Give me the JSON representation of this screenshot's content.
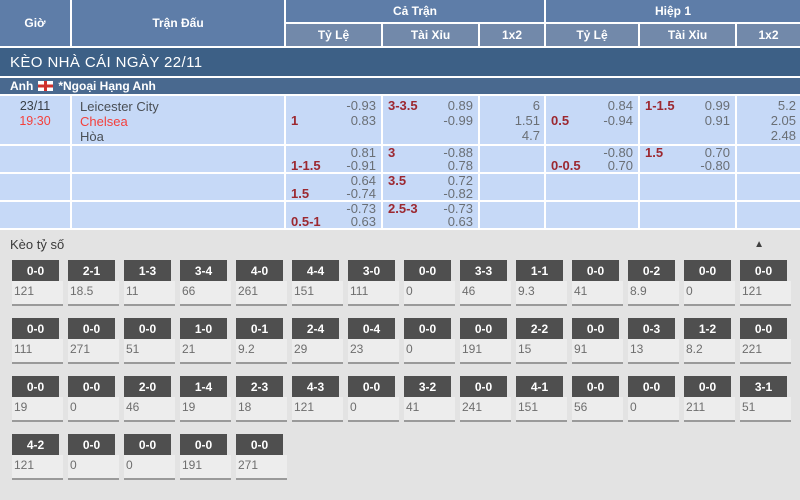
{
  "table": {
    "header": {
      "time": "Giờ",
      "match": "Trận Đấu",
      "full_time": "Cả Trận",
      "first_half": "Hiệp 1",
      "handicap": "Tỷ Lệ",
      "over_under": "Tài Xỉu",
      "one_x_two": "1x2"
    },
    "banner": "KÈO NHÀ CÁI NGÀY 22/11",
    "league": {
      "country": "Anh",
      "flag_icon": "england-flag-icon",
      "name": "*Ngoại Hạng Anh"
    },
    "match": {
      "date": "23/11",
      "time": "19:30",
      "home": "Leicester City",
      "away": "Chelsea",
      "draw": "Hòa"
    },
    "odds_rows": [
      {
        "ft_handicap": {
          "l1l": "",
          "l1r": "-0.93",
          "l2l": "1",
          "l2r": "0.83"
        },
        "ft_ou": {
          "l1l": "3-3.5",
          "l1r": "0.89",
          "l2l": "",
          "l2r": "-0.99"
        },
        "ft_1x2": [
          "6",
          "1.51",
          "4.7"
        ],
        "h1_handicap": {
          "l1l": "",
          "l1r": "0.84",
          "l2l": "0.5",
          "l2r": "-0.94"
        },
        "h1_ou": {
          "l1l": "1-1.5",
          "l1r": "0.99",
          "l2l": "",
          "l2r": "0.91"
        },
        "h1_1x2": [
          "5.2",
          "2.05",
          "2.48"
        ]
      },
      {
        "ft_handicap": {
          "l1l": "",
          "l1r": "0.81",
          "l2l": "1-1.5",
          "l2r": "-0.91"
        },
        "ft_ou": {
          "l1l": "3",
          "l1r": "-0.88",
          "l2l": "",
          "l2r": "0.78"
        },
        "ft_1x2": [],
        "h1_handicap": {
          "l1l": "",
          "l1r": "-0.80",
          "l2l": "0-0.5",
          "l2r": "0.70"
        },
        "h1_ou": {
          "l1l": "1.5",
          "l1r": "0.70",
          "l2l": "",
          "l2r": "-0.80"
        },
        "h1_1x2": []
      },
      {
        "ft_handicap": {
          "l1l": "",
          "l1r": "0.64",
          "l2l": "1.5",
          "l2r": "-0.74"
        },
        "ft_ou": {
          "l1l": "3.5",
          "l1r": "0.72",
          "l2l": "",
          "l2r": "-0.82"
        },
        "ft_1x2": [],
        "h1_handicap": null,
        "h1_ou": null,
        "h1_1x2": []
      },
      {
        "ft_handicap": {
          "l1l": "",
          "l1r": "-0.73",
          "l2l": "0.5-1",
          "l2r": "0.63"
        },
        "ft_ou": {
          "l1l": "2.5-3",
          "l1r": "-0.73",
          "l2l": "",
          "l2r": "0.63"
        },
        "ft_1x2": [],
        "h1_handicap": null,
        "h1_ou": null,
        "h1_1x2": []
      }
    ]
  },
  "correct_score": {
    "title": "Kèo tỷ số",
    "collapse_icon_glyph": "▲",
    "rows": [
      [
        {
          "score": "0-0",
          "odds": "121"
        },
        {
          "score": "2-1",
          "odds": "18.5"
        },
        {
          "score": "1-3",
          "odds": "11"
        },
        {
          "score": "3-4",
          "odds": "66"
        },
        {
          "score": "4-0",
          "odds": "261"
        },
        {
          "score": "4-4",
          "odds": "151"
        },
        {
          "score": "3-0",
          "odds": "111"
        },
        {
          "score": "0-0",
          "odds": "0"
        },
        {
          "score": "3-3",
          "odds": "46"
        },
        {
          "score": "1-1",
          "odds": "9.3"
        },
        {
          "score": "0-0",
          "odds": "41"
        },
        {
          "score": "0-2",
          "odds": "8.9"
        },
        {
          "score": "0-0",
          "odds": "0"
        },
        {
          "score": "0-0",
          "odds": "121"
        }
      ],
      [
        {
          "score": "0-0",
          "odds": "111"
        },
        {
          "score": "0-0",
          "odds": "271"
        },
        {
          "score": "0-0",
          "odds": "51"
        },
        {
          "score": "1-0",
          "odds": "21"
        },
        {
          "score": "0-1",
          "odds": "9.2"
        },
        {
          "score": "2-4",
          "odds": "29"
        },
        {
          "score": "0-4",
          "odds": "23"
        },
        {
          "score": "0-0",
          "odds": "0"
        },
        {
          "score": "0-0",
          "odds": "191"
        },
        {
          "score": "2-2",
          "odds": "15"
        },
        {
          "score": "0-0",
          "odds": "91"
        },
        {
          "score": "0-3",
          "odds": "13"
        },
        {
          "score": "1-2",
          "odds": "8.2"
        },
        {
          "score": "0-0",
          "odds": "221"
        }
      ],
      [
        {
          "score": "0-0",
          "odds": "19"
        },
        {
          "score": "0-0",
          "odds": "0"
        },
        {
          "score": "2-0",
          "odds": "46"
        },
        {
          "score": "1-4",
          "odds": "19"
        },
        {
          "score": "2-3",
          "odds": "18"
        },
        {
          "score": "4-3",
          "odds": "121"
        },
        {
          "score": "0-0",
          "odds": "0"
        },
        {
          "score": "3-2",
          "odds": "41"
        },
        {
          "score": "0-0",
          "odds": "241"
        },
        {
          "score": "4-1",
          "odds": "151"
        },
        {
          "score": "0-0",
          "odds": "56"
        },
        {
          "score": "0-0",
          "odds": "0"
        },
        {
          "score": "0-0",
          "odds": "211"
        },
        {
          "score": "3-1",
          "odds": "51"
        }
      ],
      [
        {
          "score": "4-2",
          "odds": "121"
        },
        {
          "score": "0-0",
          "odds": "0"
        },
        {
          "score": "0-0",
          "odds": "0"
        },
        {
          "score": "0-0",
          "odds": "191"
        },
        {
          "score": "0-0",
          "odds": "271"
        }
      ]
    ]
  },
  "colors": {
    "header_blue": "#5e7da8",
    "subheader_blue": "#7289aa",
    "banner_blue": "#3d6086",
    "league_blue": "#49698f",
    "row_blue": "#c6d9f7",
    "handicap_red": "#9c2830",
    "highlight_red": "#f4403c",
    "tile_dark": "#4f4f4f",
    "section_gray": "#e3e3e3"
  }
}
